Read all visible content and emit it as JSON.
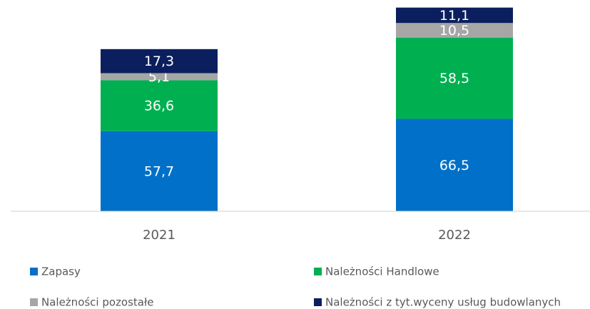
{
  "chart_data": {
    "type": "bar",
    "stacked": true,
    "categories": [
      "2021",
      "2022"
    ],
    "series": [
      {
        "name": "Zapasy",
        "color": "#0070c8",
        "values": [
          57.7,
          66.5
        ],
        "value_labels": [
          "57,7",
          "66,5"
        ]
      },
      {
        "name": "Należności Handlowe",
        "color": "#00b050",
        "values": [
          36.6,
          58.5
        ],
        "value_labels": [
          "36,6",
          "58,5"
        ]
      },
      {
        "name": "Należności pozostałe",
        "color": "#a6a6a6",
        "values": [
          5.1,
          10.5
        ],
        "value_labels": [
          "5,1",
          "10,5"
        ]
      },
      {
        "name": "Należności z tyt.wyceny usług budowlanych",
        "color": "#0b1f5e",
        "values": [
          17.3,
          11.1
        ],
        "value_labels": [
          "17,3",
          "11,1"
        ]
      }
    ],
    "ylim": [
      0,
      150
    ],
    "legend": "bottom"
  }
}
